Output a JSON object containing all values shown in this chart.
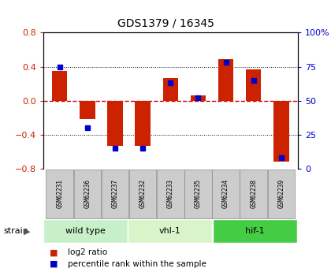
{
  "title": "GDS1379 / 16345",
  "samples": [
    "GSM62231",
    "GSM62236",
    "GSM62237",
    "GSM62232",
    "GSM62233",
    "GSM62235",
    "GSM62234",
    "GSM62238",
    "GSM62239"
  ],
  "log2_ratio": [
    0.35,
    -0.22,
    -0.53,
    -0.53,
    0.27,
    0.06,
    0.49,
    0.37,
    -0.72
  ],
  "percentile_rank": [
    75,
    30,
    15,
    15,
    63,
    52,
    78,
    65,
    8
  ],
  "groups": [
    {
      "label": "wild type",
      "start": 0,
      "end": 3,
      "color": "#c8f0c8"
    },
    {
      "label": "vhl-1",
      "start": 3,
      "end": 6,
      "color": "#d8f4c8"
    },
    {
      "label": "hif-1",
      "start": 6,
      "end": 9,
      "color": "#44cc44"
    }
  ],
  "ylim_left": [
    -0.8,
    0.8
  ],
  "ylim_right": [
    0,
    100
  ],
  "yticks_left": [
    -0.8,
    -0.4,
    0.0,
    0.4,
    0.8
  ],
  "yticks_right": [
    0,
    25,
    50,
    75,
    100
  ],
  "bar_color": "#cc2200",
  "dot_color": "#0000cc",
  "zero_line_color": "#cc0000",
  "bar_width": 0.55,
  "dot_size": 5,
  "label_box_color": "#cccccc",
  "label_box_edge": "#888888"
}
